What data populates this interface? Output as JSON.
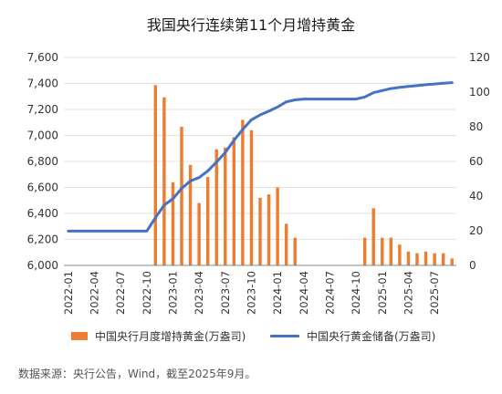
{
  "title": "我国央行连续第11个月增持黄金",
  "source": "数据来源：央行公告，Wind，截至2025年9月。",
  "colors": {
    "bar": "#ED7D31",
    "line": "#4472C4",
    "axis": "#888888"
  },
  "legend": {
    "bar_label": "中国央行月度增持黄金(万盎司)",
    "line_label": "中国央行黄金储备(万盎司)"
  },
  "chart_data": {
    "type": "bar+line",
    "title": "我国央行连续第11个月增持黄金",
    "y_left_ticks": [
      "7,600",
      "7,400",
      "7,200",
      "7,000",
      "6,800",
      "6,600",
      "6,400",
      "6,200",
      "6,000"
    ],
    "y_right_ticks": [
      "120",
      "100",
      "80",
      "60",
      "40",
      "20",
      "0"
    ],
    "ylim_left": [
      6000,
      7600
    ],
    "ylim_right": [
      0,
      120
    ],
    "x_tick_labels": [
      "2022-01",
      "2022-04",
      "2022-07",
      "2022-10",
      "2023-01",
      "2023-04",
      "2023-07",
      "2023-10",
      "2024-01",
      "2024-04",
      "2024-07",
      "2024-10",
      "2025-01",
      "2025-04",
      "2025-07"
    ],
    "months": [
      "2022-01",
      "2022-02",
      "2022-03",
      "2022-04",
      "2022-05",
      "2022-06",
      "2022-07",
      "2022-08",
      "2022-09",
      "2022-10",
      "2022-11",
      "2022-12",
      "2023-01",
      "2023-02",
      "2023-03",
      "2023-04",
      "2023-05",
      "2023-06",
      "2023-07",
      "2023-08",
      "2023-09",
      "2023-10",
      "2023-11",
      "2023-12",
      "2024-01",
      "2024-02",
      "2024-03",
      "2024-04",
      "2024-05",
      "2024-06",
      "2024-07",
      "2024-08",
      "2024-09",
      "2024-10",
      "2024-11",
      "2024-12",
      "2025-01",
      "2025-02",
      "2025-03",
      "2025-04",
      "2025-05",
      "2025-06",
      "2025-07",
      "2025-08",
      "2025-09"
    ],
    "series": [
      {
        "name": "中国央行月度增持黄金(万盎司)",
        "type": "bar",
        "axis": "right",
        "values": [
          0,
          0,
          0,
          0,
          0,
          0,
          0,
          0,
          0,
          0,
          104,
          97,
          48,
          80,
          58,
          36,
          51,
          67,
          68,
          74,
          84,
          78,
          39,
          41,
          45,
          24,
          16,
          0,
          0,
          0,
          0,
          0,
          0,
          0,
          16,
          33,
          16,
          16,
          12,
          8,
          7,
          8,
          7,
          7,
          4
        ]
      },
      {
        "name": "中国央行黄金储备(万盎司)",
        "type": "line",
        "axis": "left",
        "values": [
          6264,
          6264,
          6264,
          6264,
          6264,
          6264,
          6264,
          6264,
          6264,
          6264,
          6367,
          6464,
          6512,
          6592,
          6650,
          6676,
          6727,
          6795,
          6869,
          6962,
          7046,
          7120,
          7158,
          7187,
          7219,
          7258,
          7274,
          7280,
          7280,
          7280,
          7280,
          7280,
          7280,
          7280,
          7296,
          7329,
          7345,
          7361,
          7370,
          7377,
          7383,
          7390,
          7396,
          7402,
          7406
        ]
      }
    ],
    "grid": true,
    "legend_position": "bottom"
  }
}
